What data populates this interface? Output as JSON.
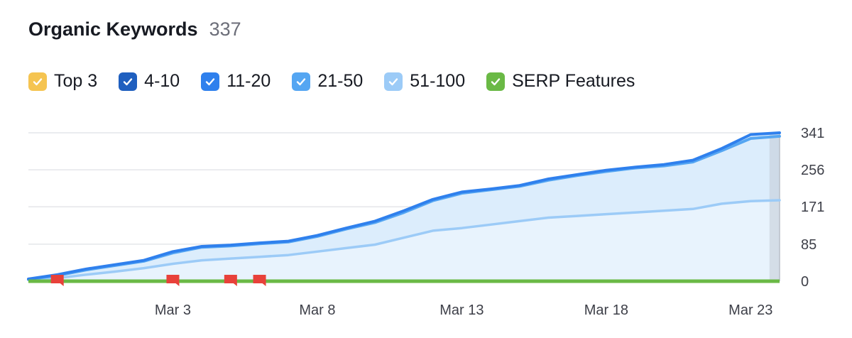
{
  "header": {
    "title": "Organic Keywords",
    "count": "337"
  },
  "legend": [
    {
      "label": "Top 3",
      "color": "#f5c451"
    },
    {
      "label": "4-10",
      "color": "#1f5fbf"
    },
    {
      "label": "11-20",
      "color": "#2f80ed"
    },
    {
      "label": "21-50",
      "color": "#55a6f2"
    },
    {
      "label": "51-100",
      "color": "#9ccbf7"
    },
    {
      "label": "SERP Features",
      "color": "#6ab945"
    }
  ],
  "chart_data": {
    "type": "area",
    "title": "Organic Keywords",
    "x_ticks": [
      "Mar 3",
      "Mar 8",
      "Mar 13",
      "Mar 18",
      "Mar 23"
    ],
    "x_tick_index": [
      5,
      10,
      15,
      20,
      25
    ],
    "y_ticks": [
      0,
      85,
      171,
      256,
      341
    ],
    "ylim": [
      0,
      341
    ],
    "series": [
      {
        "name": "11-20 (cumulative)",
        "color": "#2f80ed",
        "values": [
          5,
          15,
          28,
          38,
          48,
          68,
          80,
          83,
          88,
          92,
          105,
          122,
          138,
          162,
          188,
          205,
          212,
          220,
          235,
          245,
          255,
          262,
          268,
          278,
          305,
          337,
          341
        ]
      },
      {
        "name": "21-50 (cumulative)",
        "color": "#55a6f2",
        "values": [
          4,
          13,
          26,
          36,
          46,
          65,
          78,
          81,
          86,
          90,
          103,
          120,
          135,
          158,
          185,
          202,
          210,
          218,
          232,
          243,
          252,
          260,
          265,
          274,
          300,
          328,
          333
        ]
      },
      {
        "name": "51-100 (cumulative)",
        "color": "#9ccbf7",
        "values": [
          3,
          7,
          15,
          22,
          30,
          40,
          48,
          52,
          56,
          60,
          68,
          76,
          84,
          100,
          116,
          122,
          130,
          138,
          146,
          150,
          154,
          158,
          162,
          166,
          178,
          184,
          186
        ]
      }
    ],
    "serp_features": {
      "name": "SERP Features",
      "color": "#6ab945",
      "value": 0
    },
    "markers": [
      {
        "label": "note",
        "index": 1
      },
      {
        "label": "note",
        "index": 5
      },
      {
        "label": "note",
        "index": 7
      },
      {
        "label": "note",
        "index": 8
      }
    ]
  }
}
